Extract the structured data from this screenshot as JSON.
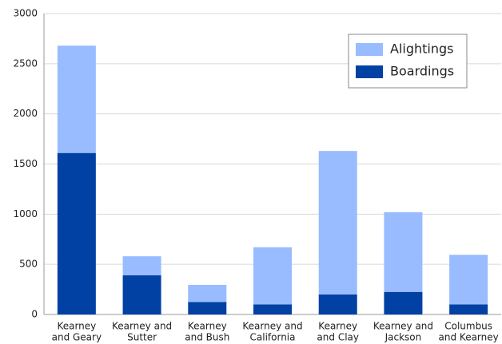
{
  "chart_data": {
    "type": "stacked_bar",
    "categories": [
      [
        "Kearney",
        "and Geary"
      ],
      [
        "Kearney and",
        "Sutter"
      ],
      [
        "Kearney",
        "and Bush"
      ],
      [
        "Kearney and",
        "California"
      ],
      [
        "Kearney",
        "and Clay"
      ],
      [
        "Kearney and",
        "Jackson"
      ],
      [
        "Columbus",
        "and Kearney"
      ]
    ],
    "series": [
      {
        "name": "Boardings",
        "color": "#0041a3",
        "values": [
          1610,
          390,
          125,
          100,
          200,
          225,
          100
        ]
      },
      {
        "name": "Alightings",
        "color": "#99bbff",
        "values": [
          1070,
          190,
          170,
          570,
          1430,
          795,
          495
        ]
      }
    ],
    "ylim": [
      0,
      3000
    ],
    "yticks": [
      0,
      500,
      1000,
      1500,
      2000,
      2500,
      3000
    ],
    "grid": true,
    "legend": "top-right"
  }
}
